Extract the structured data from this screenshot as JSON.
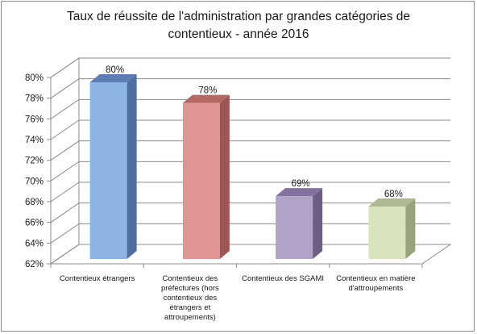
{
  "chart_data": {
    "type": "bar",
    "title_lines": [
      "Taux de réussite de l'administration par grandes catégories de",
      "contentieux - année 2016"
    ],
    "categories": [
      {
        "lines": [
          "Contentieux étrangers"
        ]
      },
      {
        "lines": [
          "Contentieux des",
          "préfectures (hors",
          "contentieux des",
          "étrangers  et",
          "attroupements)"
        ]
      },
      {
        "lines": [
          "Contentieux des SGAMI"
        ]
      },
      {
        "lines": [
          "Contentieux en matière",
          "d'attroupements"
        ]
      }
    ],
    "values": [
      80,
      78,
      69,
      68
    ],
    "value_labels": [
      "80%",
      "78%",
      "69%",
      "68%"
    ],
    "y_ticks": [
      "62%",
      "64%",
      "66%",
      "68%",
      "70%",
      "72%",
      "74%",
      "76%",
      "78%",
      "80%"
    ],
    "ylim": [
      62,
      80
    ],
    "grid": true,
    "legend": "none",
    "colors": {
      "bars": [
        {
          "front": "#8db4e2",
          "side": "#4f6f9e",
          "top": "#5b7db3"
        },
        {
          "front": "#e09594",
          "side": "#9c5655",
          "top": "#b46866"
        },
        {
          "front": "#b3a2c7",
          "side": "#6e5e85",
          "top": "#8472a0"
        },
        {
          "front": "#d8e4bc",
          "side": "#97a37b",
          "top": "#adb990"
        }
      ]
    }
  }
}
